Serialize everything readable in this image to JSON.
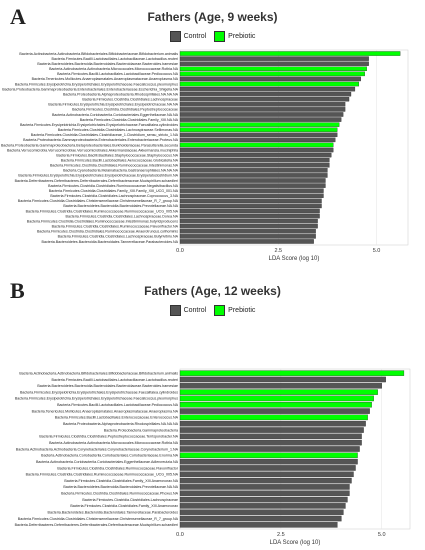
{
  "chart_data": [
    {
      "panel": "A",
      "type": "bar",
      "orientation": "horizontal",
      "title": "Fathers (Age, 9 weeks)",
      "xlabel": "LDA Score (log 10)",
      "xlim": [
        0,
        5.8
      ],
      "xticks": [
        "0.0",
        "2.5",
        "5.0"
      ],
      "legend": [
        {
          "name": "Control",
          "color": "#555555"
        },
        {
          "name": "Prebiotic",
          "color": "#00ff00"
        }
      ],
      "bars": [
        {
          "label": "Bacteria.Actinobacteria.Actinobacteria.Bifidobacteriales.Bifidobacteriaceae.Bifidobacterium.animalis",
          "value": 5.6,
          "group": "Prebiotic"
        },
        {
          "label": "Bacteria.Firmicutes.Bacilli.Lactobacillales.Lactobacillaceae.Lactobacillus.reuteri",
          "value": 4.8,
          "group": "Control"
        },
        {
          "label": "Bacteria.Bacteroidetes.Bacteroidia.Bacteroidales.Bacteroidaceae.Bacteroides.barnesiae",
          "value": 4.8,
          "group": "Control"
        },
        {
          "label": "Bacteria.Actinobacteria.Actinobacteria.Micrococcales.Micrococcaceae.Rothia.NA",
          "value": 4.75,
          "group": "Prebiotic"
        },
        {
          "label": "Bacteria.Firmicutes.Bacilli.Lactobacillales.Lactobacillaceae.Pediococcus.NA",
          "value": 4.7,
          "group": "Prebiotic"
        },
        {
          "label": "Bacteria.Tenericutes.Mollicutes.Anaeroplasmatales.Anaeroplasmataceae.Anaeroplasma.NA",
          "value": 4.6,
          "group": "Control"
        },
        {
          "label": "Bacteria.Firmicutes.Erysipelotrichia.Erysipelotrichales.Erysipelotrichaceae.Faecalicoccus.pleomorphus",
          "value": 4.55,
          "group": "Prebiotic"
        },
        {
          "label": "Bacteria.Proteobacteria.Gammaproteobacteria.Enterobacteriales.Enterobacteriaceae.Escherichia_Shigella.NA",
          "value": 4.45,
          "group": "Control"
        },
        {
          "label": "Bacteria.Proteobacteria.Alphaproteobacteria.Rhodospirillales.NA.NA.NA",
          "value": 4.35,
          "group": "Control"
        },
        {
          "label": "Bacteria.Firmicutes.Clostridia.Clostridiales.Lachnospiraceae",
          "value": 4.3,
          "group": "Control"
        },
        {
          "label": "Bacteria.Firmicutes.Erysipelotrichia.Erysipelotrichales.Erysipelotrichaceae.NA.NA",
          "value": 4.2,
          "group": "Control"
        },
        {
          "label": "Bacteria.Firmicutes.Clostridia.Clostridiales.Peptostreptococcaceae",
          "value": 4.2,
          "group": "Control"
        },
        {
          "label": "Bacteria.Actinobacteria.Coriobacteriia.Coriobacteriales.Eggerthellaceae.NA.NA",
          "value": 4.15,
          "group": "Control"
        },
        {
          "label": "Bacteria.Firmicutes.Clostridia.Clostridiales.Family_XIII.NA.NA",
          "value": 4.1,
          "group": "Control"
        },
        {
          "label": "Bacteria.Firmicutes.Erysipelotrichia.Erysipelotrichales.Erysipelotrichaceae.Faecalitalea.cylindroides",
          "value": 4.05,
          "group": "Prebiotic"
        },
        {
          "label": "Bacteria.Firmicutes.Clostridia.Clostridiales.Lachnospiraceae.Sellimonas.NA",
          "value": 4.0,
          "group": "Prebiotic"
        },
        {
          "label": "Bacteria.Firmicutes.Clostridia.Clostridiales.Clostridiaceae_1.Clostridium_sensu_stricto_1.NA",
          "value": 4.0,
          "group": "Control"
        },
        {
          "label": "Bacteria.Proteobacteria.Gammaproteobacteria.Enterobacteriales.Enterobacteriaceae.Proteus.NA",
          "value": 3.95,
          "group": "Control"
        },
        {
          "label": "Bacteria.Proteobacteria.Gammaproteobacteria.Betaproteobacteriales.Burkholderiaceae.Parasutterella.secunda",
          "value": 3.9,
          "group": "Prebiotic"
        },
        {
          "label": "Bacteria.Verrucomicrobia.Verrucomicrobiae.Verrucomicrobiales.Akkermansiaceae.Akkermansia.muciniphila",
          "value": 3.9,
          "group": "Control"
        },
        {
          "label": "Bacteria.Firmicutes.Bacilli.Bacillales.Staphylococcaceae.Staphylococcus.NA",
          "value": 3.85,
          "group": "Control"
        },
        {
          "label": "Bacteria.Firmicutes.Bacilli.Lactobacillales.Aerococcaceae.Globicatella.NA",
          "value": 3.8,
          "group": "Control"
        },
        {
          "label": "Bacteria.Firmicutes.Clostridia.Clostridiales.Ruminococcaceae.Intestinimonas.NA",
          "value": 3.8,
          "group": "Control"
        },
        {
          "label": "Bacteria.Cyanobacteria.Melainabacteria.Gastranaerophilales.NA.NA.NA",
          "value": 3.75,
          "group": "Control"
        },
        {
          "label": "Bacteria.Firmicutes.Erysipelotrichia.Erysipelotrichales.Erysipelotrichaceae.Erysipelatoclostridium.NA",
          "value": 3.75,
          "group": "Control"
        },
        {
          "label": "Bacteria.Deferribacteres.Deferribacteres.Deferribacterales.Deferribacteraceae.Mucispirillum.schaedleri",
          "value": 3.7,
          "group": "Control"
        },
        {
          "label": "Bacteria.Firmicutes.Clostridia.Clostridiales.Ruminococcaceae.Negativibacillus.NA",
          "value": 3.7,
          "group": "Control"
        },
        {
          "label": "Bacteria.Firmicutes.Clostridia.Clostridiales.Family_XIII.Family_XIII_UCG_001.NA",
          "value": 3.65,
          "group": "Control"
        },
        {
          "label": "Bacteria.Firmicutes.Clostridia.Clostridiales.Lachnospiraceae.Coprococcus_3.NA",
          "value": 3.65,
          "group": "Control"
        },
        {
          "label": "Bacteria.Firmicutes.Clostridia.Clostridiales.Christensenellaceae.Christensenellaceae_R_7_group.NA",
          "value": 3.6,
          "group": "Control"
        },
        {
          "label": "Bacteria.Bacteroidetes.Bacteroidia.Bacteroidales.Prevotellaceae.NA.NA",
          "value": 3.6,
          "group": "Control"
        },
        {
          "label": "Bacteria.Firmicutes.Clostridia.Clostridiales.Ruminococcaceae.Ruminococcaceae_UCG_005.NA",
          "value": 3.55,
          "group": "Control"
        },
        {
          "label": "Bacteria.Firmicutes.Clostridia.Clostridiales.Lachnospiraceae.Dorea.NA",
          "value": 3.55,
          "group": "Control"
        },
        {
          "label": "Bacteria.Firmicutes.Clostridia.Clostridiales.Ruminococcaceae.Intestinimonas.butyriciproducens",
          "value": 3.5,
          "group": "Control"
        },
        {
          "label": "Bacteria.Firmicutes.Clostridia.Clostridiales.Ruminococcaceae.Flavonifractor.NA",
          "value": 3.5,
          "group": "Control"
        },
        {
          "label": "Bacteria.Firmicutes.Clostridia.Clostridiales.Ruminococcaceae.Anaerotruncus.colihominis",
          "value": 3.45,
          "group": "Control"
        },
        {
          "label": "Bacteria.Firmicutes.Clostridia.Clostridiales.Lachnospiraceae.Butyrivibrio.NA",
          "value": 3.45,
          "group": "Control"
        },
        {
          "label": "Bacteria.Bacteroidetes.Bacteroidia.Bacteroidales.Tannerellaceae.Parabacteroides.NA",
          "value": 3.4,
          "group": "Control"
        }
      ]
    },
    {
      "panel": "B",
      "type": "bar",
      "orientation": "horizontal",
      "title": "Fathers (Age, 12 weeks)",
      "xlabel": "LDA Score (log 10)",
      "xlim": [
        0,
        5.7
      ],
      "xticks": [
        "0.0",
        "2.5",
        "5.0"
      ],
      "legend": [
        {
          "name": "Control",
          "color": "#555555"
        },
        {
          "name": "Prebiotic",
          "color": "#00ff00"
        }
      ],
      "bars": [
        {
          "label": "Bacteria.Actinobacteria.Actinobacteria.Bifidobacteriales.Bifidobacteriaceae.Bifidobacterium.animalis",
          "value": 5.55,
          "group": "Prebiotic"
        },
        {
          "label": "Bacteria.Firmicutes.Bacilli.Lactobacillales.Lactobacillaceae.Lactobacillus.reuteri",
          "value": 5.1,
          "group": "Control"
        },
        {
          "label": "Bacteria.Bacteroidetes.Bacteroidia.Bacteroidales.Bacteroidaceae.Bacteroides.barnesiae",
          "value": 5.0,
          "group": "Control"
        },
        {
          "label": "Bacteria.Firmicutes.Erysipelotrichia.Erysipelotrichales.Erysipelotrichaceae.Faecalitalea.cylindroides",
          "value": 4.9,
          "group": "Prebiotic"
        },
        {
          "label": "Bacteria.Firmicutes.Erysipelotrichia.Erysipelotrichales.Erysipelotrichaceae.Faecalicoccus.pleomorphus",
          "value": 4.8,
          "group": "Prebiotic"
        },
        {
          "label": "Bacteria.Firmicutes.Bacilli.Lactobacillales.Lactobacillaceae.Pediococcus.NA",
          "value": 4.75,
          "group": "Prebiotic"
        },
        {
          "label": "Bacteria.Tenericutes.Mollicutes.Anaeroplasmatales.Anaeroplasmataceae.Anaeroplasma.NA",
          "value": 4.7,
          "group": "Control"
        },
        {
          "label": "Bacteria.Firmicutes.Bacilli.Lactobacillales.Enterococcaceae.Enterococcus.NA",
          "value": 4.65,
          "group": "Prebiotic"
        },
        {
          "label": "Bacteria.Proteobacteria.Alphaproteobacteria.Rhodospirillales.NA.NA.NA",
          "value": 4.6,
          "group": "Control"
        },
        {
          "label": "Bacteria.Proteobacteria.Gammaproteobacteria",
          "value": 4.55,
          "group": "Control"
        },
        {
          "label": "Bacteria.Firmicutes.Clostridia.Clostridiales.Peptostreptococcaceae.Terrisporobacter.NA",
          "value": 4.5,
          "group": "Control"
        },
        {
          "label": "Bacteria.Actinobacteria.Actinobacteria.Micrococcales.Micrococcaceae.Rothia.NA",
          "value": 4.5,
          "group": "Control"
        },
        {
          "label": "Bacteria.Actinobacteria.Actinobacteria.Corynebacteriales.Corynebacteriaceae.Corynebacterium_1.NA",
          "value": 4.45,
          "group": "Control"
        },
        {
          "label": "Bacteria.Actinobacteria.Coriobacteriia.Coriobacteriales.Coriobacteriaceae.Enorma.NA",
          "value": 4.4,
          "group": "Prebiotic"
        },
        {
          "label": "Bacteria.Actinobacteria.Coriobacteriia.Coriobacteriales.Eggerthellaceae.Adlercreutzia.NA",
          "value": 4.4,
          "group": "Control"
        },
        {
          "label": "Bacteria.Firmicutes.Clostridia.Clostridiales.Ruminococcaceae.Flavonifractor",
          "value": 4.35,
          "group": "Control"
        },
        {
          "label": "Bacteria.Firmicutes.Clostridia.Clostridiales.Ruminococcaceae.Ruminococcaceae_UCG_005.NA",
          "value": 4.3,
          "group": "Control"
        },
        {
          "label": "Bacteria.Firmicutes.Clostridia.Clostridiales.Family_XIII.Anaerovorax.NA",
          "value": 4.25,
          "group": "Control"
        },
        {
          "label": "Bacteria.Bacteroidetes.Bacteroidia.Bacteroidales.Prevotellaceae.NA.NA",
          "value": 4.2,
          "group": "Control"
        },
        {
          "label": "Bacteria.Firmicutes.Clostridia.Clostridiales.Ruminococcaceae.Phoxus.NA",
          "value": 4.2,
          "group": "Control"
        },
        {
          "label": "Bacteria.Firmicutes.Clostridia.Clostridiales.Lachnospiraceae",
          "value": 4.15,
          "group": "Control"
        },
        {
          "label": "Bacteria.Firmicutes.Clostridia.Clostridiales.Family_XIII.Anaerovorax",
          "value": 4.1,
          "group": "Control"
        },
        {
          "label": "Bacteria.Bacteroidetes.Bacteroidia.Bacteroidales.Tannerellaceae.Parabacteroides",
          "value": 4.05,
          "group": "Control"
        },
        {
          "label": "Bacteria.Firmicutes.Clostridia.Clostridiales.Christensenellaceae.Christensenellaceae_R_7_group.NA",
          "value": 4.0,
          "group": "Control"
        },
        {
          "label": "Bacteria.Deferribacteres.Deferribacteres.Deferribacterales.Deferribacteraceae.Mucispirillum.schaedleri",
          "value": 3.9,
          "group": "Control"
        }
      ]
    }
  ]
}
